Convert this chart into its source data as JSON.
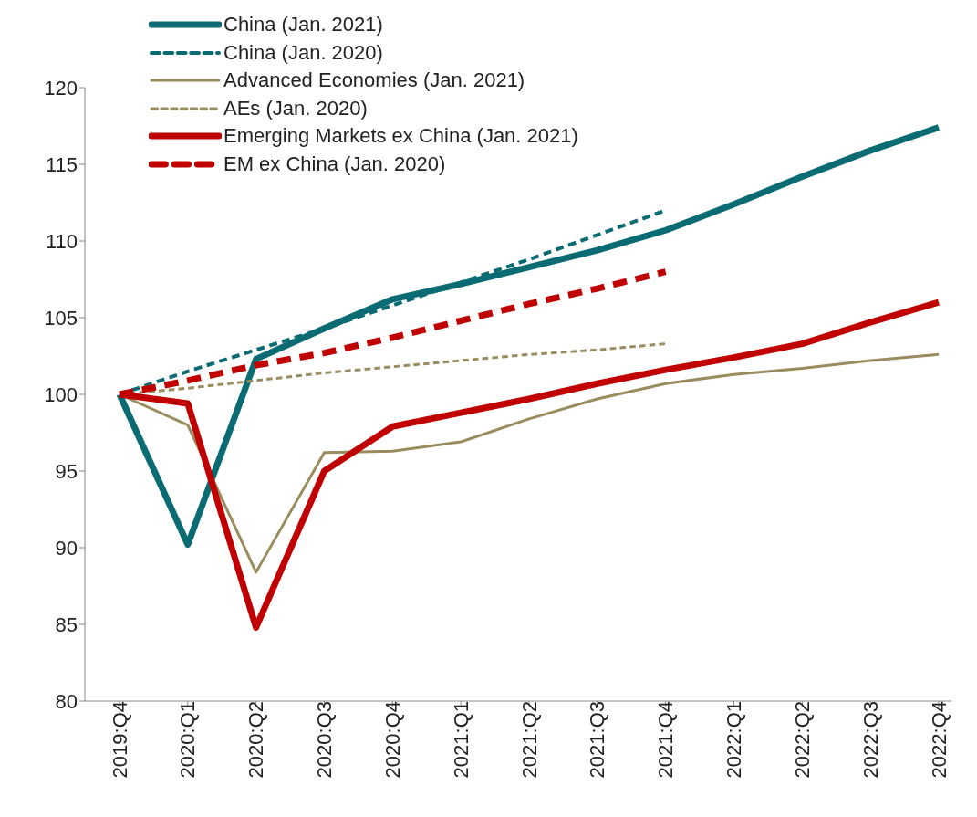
{
  "chart_data": {
    "type": "line",
    "categories": [
      "2019:Q4",
      "2020:Q1",
      "2020:Q2",
      "2020:Q3",
      "2020:Q4",
      "2021:Q1",
      "2021:Q2",
      "2021:Q3",
      "2021:Q4",
      "2022:Q1",
      "2022:Q2",
      "2022:Q3",
      "2022:Q4"
    ],
    "series": [
      {
        "name": "China (Jan. 2021)",
        "color": "#0b6b73",
        "line_style": "solid",
        "values": [
          100,
          90.2,
          102.3,
          104.3,
          106.2,
          107.2,
          108.3,
          109.4,
          110.7,
          112.4,
          114.2,
          115.9,
          117.4
        ]
      },
      {
        "name": "China (Jan. 2020)",
        "color": "#0b6b73",
        "line_style": "dashed",
        "values": [
          100,
          101.5,
          102.9,
          104.3,
          105.8,
          107.3,
          108.8,
          110.4,
          112.0,
          null,
          null,
          null,
          null
        ]
      },
      {
        "name": "Advanced Economies (Jan. 2021)",
        "color": "#998c5f",
        "line_style": "solid",
        "values": [
          100,
          98,
          88.4,
          96.2,
          96.3,
          96.9,
          98.4,
          99.7,
          100.7,
          101.3,
          101.7,
          102.2,
          102.6
        ]
      },
      {
        "name": "AEs (Jan. 2020)",
        "color": "#998c5f",
        "line_style": "dashed",
        "values": [
          100,
          100.4,
          100.9,
          101.4,
          101.8,
          102.2,
          102.6,
          102.9,
          103.3,
          null,
          null,
          null,
          null
        ]
      },
      {
        "name": "Emerging Markets ex China (Jan. 2021)",
        "color": "#c00000",
        "line_style": "solid",
        "values": [
          100,
          99.4,
          84.8,
          95,
          97.9,
          98.8,
          99.7,
          100.7,
          101.6,
          102.4,
          103.3,
          104.7,
          106.0
        ]
      },
      {
        "name": "EM ex China (Jan. 2020)",
        "color": "#c00000",
        "line_style": "dashed",
        "values": [
          100,
          100.9,
          101.9,
          102.7,
          103.7,
          104.8,
          105.9,
          106.9,
          108.0,
          null,
          null,
          null,
          null
        ]
      }
    ],
    "ylim": [
      80,
      120
    ],
    "yticks": [
      80,
      85,
      90,
      95,
      100,
      105,
      110,
      115,
      120
    ],
    "grid": false,
    "legend": "top left",
    "marker": "none"
  }
}
